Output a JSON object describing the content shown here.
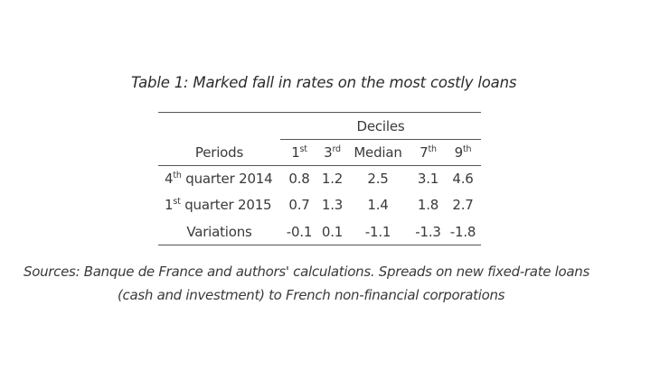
{
  "table": {
    "title": "Table 1: Marked fall in rates on the most costly loans",
    "group_header": "Deciles",
    "periods_header": "Periods",
    "columns": [
      {
        "num": "1",
        "sup": "st"
      },
      {
        "num": "3",
        "sup": "rd"
      },
      {
        "label": "Median"
      },
      {
        "num": "7",
        "sup": "th"
      },
      {
        "num": "9",
        "sup": "th"
      }
    ],
    "rows": [
      {
        "period_num": "4",
        "period_sup": "th",
        "period_rest": " quarter 2014",
        "values": [
          "0.8",
          "1.2",
          "2.5",
          "3.1",
          "4.6"
        ]
      },
      {
        "period_num": "1",
        "period_sup": "st",
        "period_rest": " quarter 2015",
        "values": [
          "0.7",
          "1.3",
          "1.4",
          "1.8",
          "2.7"
        ]
      },
      {
        "period": "Variations",
        "values": [
          "-0.1",
          "0.1",
          "-1.1",
          "-1.3",
          "-1.8"
        ]
      }
    ]
  },
  "source": {
    "line1": "Sources: Banque de France and authors' calculations. Spreads on new fixed-rate loans",
    "line2": "(cash and investment) to French non-financial corporations"
  }
}
